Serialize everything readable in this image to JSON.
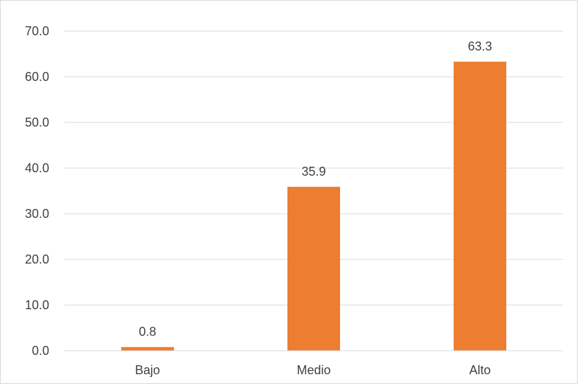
{
  "chart_data": {
    "type": "bar",
    "categories": [
      "Bajo",
      "Medio",
      "Alto"
    ],
    "values": [
      0.8,
      35.9,
      63.3
    ],
    "value_labels": [
      "0.8",
      "35.9",
      "63.3"
    ],
    "y_ticks": [
      "0.0",
      "10.0",
      "20.0",
      "30.0",
      "40.0",
      "50.0",
      "60.0",
      "70.0"
    ],
    "ylim": [
      0,
      70
    ],
    "bar_color": "#ED7D31",
    "gridline_color": "#d9d9d9",
    "grid": true,
    "legend": false,
    "title": "",
    "xlabel": "",
    "ylabel": ""
  }
}
